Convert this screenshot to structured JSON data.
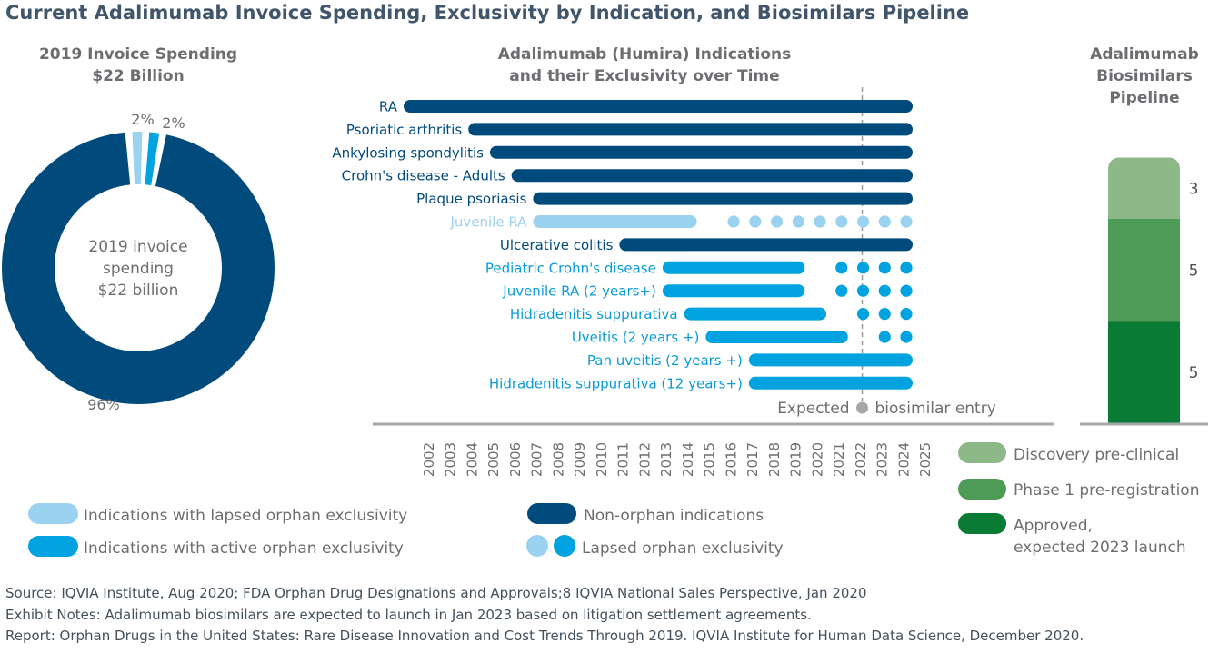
{
  "title": "Current Adalimumab Invoice Spending, Exclusivity by Indication, and Biosimilars Pipeline",
  "colors": {
    "non_orphan": "#004b7c",
    "active_orphan": "#00a3e0",
    "lapsed_orphan": "#9ad2f0",
    "axis": "#a5a7aa",
    "text_grey": "#6d6e71",
    "discovery": "#8db887",
    "phase1": "#4e9a57",
    "approved": "#0a7b34"
  },
  "donut": {
    "title_line1": "2019 Invoice Spending",
    "title_line2": "$22 Billion",
    "center_line1": "2019 invoice",
    "center_line2": "spending",
    "center_line3": "$22 billion"
  },
  "timeline": {
    "title_line1": "Adalimumab (Humira) Indications",
    "title_line2": "and their Exclusivity over Time",
    "annotation_left": "Expected",
    "annotation_right": "biosimilar entry"
  },
  "pipeline": {
    "title_line1": "Adalimumab",
    "title_line2": "Biosimilars",
    "title_line3": "Pipeline"
  },
  "legend": {
    "lapsed": "Indications with lapsed orphan exclusivity",
    "active": "Indications with active orphan exclusivity",
    "non_orphan": "Non-orphan indications",
    "dots": "Lapsed orphan exclusivity",
    "discovery": "Discovery pre-clinical",
    "phase1": "Phase 1 pre-registration",
    "approved_line1": "Approved,",
    "approved_line2": "expected 2023 launch"
  },
  "footer": {
    "source": "Source: IQVIA Institute, Aug 2020; FDA Orphan Drug Designations and Approvals;8 IQVIA National Sales Perspective, Jan 2020",
    "notes": "Exhibit Notes: Adalimumab biosimilars are expected to launch in Jan 2023 based on litigation settlement agreements.",
    "report": "Report: Orphan Drugs in the United States: Rare Disease Innovation and Cost Trends Through 2019. IQVIA Institute for Human Data Science, December 2020."
  },
  "chart_data": [
    {
      "type": "pie",
      "title": "2019 Invoice Spending $22 Billion",
      "slices": [
        {
          "label": "Non-orphan indications",
          "value": 96,
          "display": "96%",
          "color": "#004b7c"
        },
        {
          "label": "Indications with lapsed orphan exclusivity",
          "value": 2,
          "display": "2%",
          "color": "#9ad2f0"
        },
        {
          "label": "Indications with active orphan exclusivity",
          "value": 2,
          "display": "2%",
          "color": "#00a3e0"
        }
      ]
    },
    {
      "type": "bar",
      "orientation": "horizontal-timeline",
      "title": "Adalimumab (Humira) Indications and their Exclusivity over Time",
      "x_ticks": [
        "2002",
        "2003",
        "2004",
        "2005",
        "2006",
        "2007",
        "2008",
        "2009",
        "2010",
        "2011",
        "2012",
        "2013",
        "2014",
        "2015",
        "2016",
        "2017",
        "2018",
        "2019",
        "2020",
        "2021",
        "2022",
        "2023",
        "2024",
        "2025"
      ],
      "xlim": [
        2002,
        2025
      ],
      "expected_biosimilar_entry": 2023,
      "rows": [
        {
          "label": "RA",
          "category": "non_orphan",
          "start": 2002,
          "end": 2025
        },
        {
          "label": "Psoriatic arthritis",
          "category": "non_orphan",
          "start": 2005,
          "end": 2025
        },
        {
          "label": "Ankylosing spondylitis",
          "category": "non_orphan",
          "start": 2006,
          "end": 2025
        },
        {
          "label": "Crohn's disease - Adults",
          "category": "non_orphan",
          "start": 2007,
          "end": 2025
        },
        {
          "label": "Plaque psoriasis",
          "category": "non_orphan",
          "start": 2008,
          "end": 2025
        },
        {
          "label": "Juvenile RA",
          "category": "lapsed_orphan",
          "start": 2008,
          "end": 2015,
          "lapsed_dots": [
            2017,
            2018,
            2019,
            2020,
            2021,
            2022,
            2023,
            2024,
            2025
          ]
        },
        {
          "label": "Ulcerative colitis",
          "category": "non_orphan",
          "start": 2012,
          "end": 2025
        },
        {
          "label": "Pediatric Crohn's disease",
          "category": "active_orphan",
          "start": 2014,
          "end": 2020,
          "lapsed_dots": [
            2022,
            2023,
            2024,
            2025
          ]
        },
        {
          "label": "Juvenile RA (2 years+)",
          "category": "active_orphan",
          "start": 2014,
          "end": 2020,
          "lapsed_dots": [
            2022,
            2023,
            2024,
            2025
          ]
        },
        {
          "label": "Hidradenitis suppurativa",
          "category": "active_orphan",
          "start": 2015,
          "end": 2021,
          "lapsed_dots": [
            2023,
            2024,
            2025
          ]
        },
        {
          "label": "Uveitis (2 years +)",
          "category": "active_orphan",
          "start": 2016,
          "end": 2022,
          "lapsed_dots": [
            2024,
            2025
          ]
        },
        {
          "label": "Pan uveitis (2 years +)",
          "category": "active_orphan",
          "start": 2018,
          "end": 2025
        },
        {
          "label": "Hidradenitis suppurativa (12 years+)",
          "category": "active_orphan",
          "start": 2018,
          "end": 2025
        }
      ]
    },
    {
      "type": "bar",
      "orientation": "stacked-vertical",
      "title": "Adalimumab Biosimilars Pipeline",
      "series": [
        {
          "name": "Approved, expected 2023 launch",
          "value": 5,
          "color": "#0a7b34"
        },
        {
          "name": "Phase 1 pre-registration",
          "value": 5,
          "color": "#4e9a57"
        },
        {
          "name": "Discovery pre-clinical",
          "value": 3,
          "color": "#8db887"
        }
      ]
    }
  ]
}
